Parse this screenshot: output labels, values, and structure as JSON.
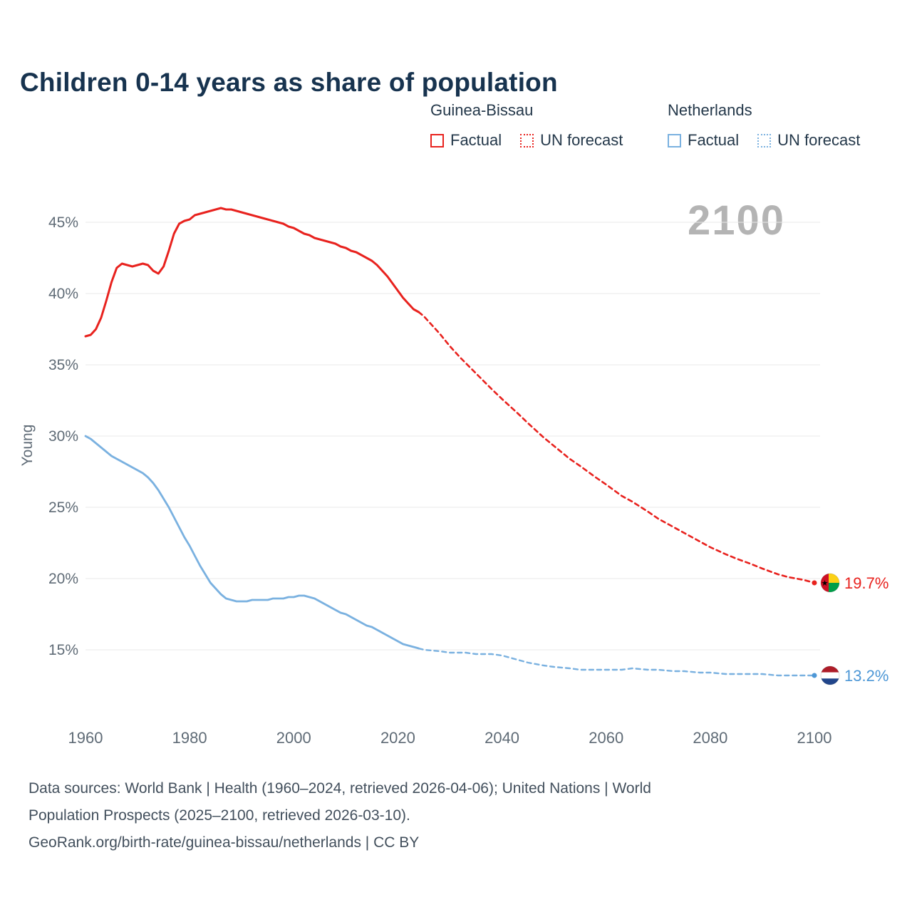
{
  "title": "Children 0-14 years as share of population",
  "watermark": {
    "text": "2100",
    "color": "#b4b4b4"
  },
  "legend": {
    "groups": [
      {
        "name": "Guinea-Bissau",
        "color": "#e8221e",
        "items": [
          {
            "label": "Factual",
            "style": "solid"
          },
          {
            "label": "UN forecast",
            "style": "dotted"
          }
        ]
      },
      {
        "name": "Netherlands",
        "color": "#7ab1e0",
        "items": [
          {
            "label": "Factual",
            "style": "solid"
          },
          {
            "label": "UN forecast",
            "style": "dotted"
          }
        ]
      }
    ]
  },
  "chart_data": {
    "type": "line",
    "title": "Children 0-14 years as share of population",
    "xlabel": "",
    "ylabel": "Young",
    "yticks": [
      15,
      20,
      25,
      30,
      35,
      40,
      45
    ],
    "ytick_suffix": "%",
    "xticks": [
      1960,
      1980,
      2000,
      2020,
      2040,
      2060,
      2080,
      2100
    ],
    "xlim": [
      1960,
      2100
    ],
    "ylim": [
      15,
      45
    ],
    "grid": "horizontal",
    "legend_position": "top-right",
    "series": [
      {
        "name": "Guinea-Bissau Factual",
        "color": "#e8221e",
        "dash": "solid",
        "width": 3,
        "points": [
          [
            1960,
            37.0
          ],
          [
            1961,
            37.1
          ],
          [
            1962,
            37.5
          ],
          [
            1963,
            38.3
          ],
          [
            1964,
            39.5
          ],
          [
            1965,
            40.8
          ],
          [
            1966,
            41.8
          ],
          [
            1967,
            42.1
          ],
          [
            1968,
            42.0
          ],
          [
            1969,
            41.9
          ],
          [
            1970,
            42.0
          ],
          [
            1971,
            42.1
          ],
          [
            1972,
            42.0
          ],
          [
            1973,
            41.6
          ],
          [
            1974,
            41.4
          ],
          [
            1975,
            41.9
          ],
          [
            1976,
            43.0
          ],
          [
            1977,
            44.2
          ],
          [
            1978,
            44.9
          ],
          [
            1979,
            45.1
          ],
          [
            1980,
            45.2
          ],
          [
            1981,
            45.5
          ],
          [
            1982,
            45.6
          ],
          [
            1983,
            45.7
          ],
          [
            1984,
            45.8
          ],
          [
            1985,
            45.9
          ],
          [
            1986,
            46.0
          ],
          [
            1987,
            45.9
          ],
          [
            1988,
            45.9
          ],
          [
            1989,
            45.8
          ],
          [
            1990,
            45.7
          ],
          [
            1991,
            45.6
          ],
          [
            1992,
            45.5
          ],
          [
            1993,
            45.4
          ],
          [
            1994,
            45.3
          ],
          [
            1995,
            45.2
          ],
          [
            1996,
            45.1
          ],
          [
            1997,
            45.0
          ],
          [
            1998,
            44.9
          ],
          [
            1999,
            44.7
          ],
          [
            2000,
            44.6
          ],
          [
            2001,
            44.4
          ],
          [
            2002,
            44.2
          ],
          [
            2003,
            44.1
          ],
          [
            2004,
            43.9
          ],
          [
            2005,
            43.8
          ],
          [
            2006,
            43.7
          ],
          [
            2007,
            43.6
          ],
          [
            2008,
            43.5
          ],
          [
            2009,
            43.3
          ],
          [
            2010,
            43.2
          ],
          [
            2011,
            43.0
          ],
          [
            2012,
            42.9
          ],
          [
            2013,
            42.7
          ],
          [
            2014,
            42.5
          ],
          [
            2015,
            42.3
          ],
          [
            2016,
            42.0
          ],
          [
            2017,
            41.6
          ],
          [
            2018,
            41.2
          ],
          [
            2019,
            40.7
          ],
          [
            2020,
            40.2
          ],
          [
            2021,
            39.7
          ],
          [
            2022,
            39.3
          ],
          [
            2023,
            38.9
          ],
          [
            2024,
            38.7
          ]
        ]
      },
      {
        "name": "Guinea-Bissau UN forecast",
        "color": "#e8221e",
        "dash": "dashed",
        "width": 2.6,
        "points": [
          [
            2024,
            38.7
          ],
          [
            2025,
            38.4
          ],
          [
            2028,
            37.2
          ],
          [
            2030,
            36.3
          ],
          [
            2032,
            35.5
          ],
          [
            2035,
            34.4
          ],
          [
            2038,
            33.3
          ],
          [
            2040,
            32.6
          ],
          [
            2043,
            31.6
          ],
          [
            2045,
            30.9
          ],
          [
            2048,
            29.9
          ],
          [
            2050,
            29.3
          ],
          [
            2053,
            28.4
          ],
          [
            2055,
            27.9
          ],
          [
            2058,
            27.1
          ],
          [
            2060,
            26.6
          ],
          [
            2063,
            25.8
          ],
          [
            2065,
            25.4
          ],
          [
            2068,
            24.7
          ],
          [
            2070,
            24.2
          ],
          [
            2073,
            23.6
          ],
          [
            2075,
            23.2
          ],
          [
            2078,
            22.6
          ],
          [
            2080,
            22.2
          ],
          [
            2083,
            21.7
          ],
          [
            2085,
            21.4
          ],
          [
            2088,
            21.0
          ],
          [
            2090,
            20.7
          ],
          [
            2093,
            20.3
          ],
          [
            2095,
            20.1
          ],
          [
            2098,
            19.9
          ],
          [
            2100,
            19.7
          ]
        ]
      },
      {
        "name": "Netherlands Factual",
        "color": "#7ab1e0",
        "dash": "solid",
        "width": 2.8,
        "points": [
          [
            1960,
            30.0
          ],
          [
            1961,
            29.8
          ],
          [
            1962,
            29.5
          ],
          [
            1963,
            29.2
          ],
          [
            1964,
            28.9
          ],
          [
            1965,
            28.6
          ],
          [
            1966,
            28.4
          ],
          [
            1967,
            28.2
          ],
          [
            1968,
            28.0
          ],
          [
            1969,
            27.8
          ],
          [
            1970,
            27.6
          ],
          [
            1971,
            27.4
          ],
          [
            1972,
            27.1
          ],
          [
            1973,
            26.7
          ],
          [
            1974,
            26.2
          ],
          [
            1975,
            25.6
          ],
          [
            1976,
            25.0
          ],
          [
            1977,
            24.3
          ],
          [
            1978,
            23.6
          ],
          [
            1979,
            22.9
          ],
          [
            1980,
            22.3
          ],
          [
            1981,
            21.6
          ],
          [
            1982,
            20.9
          ],
          [
            1983,
            20.3
          ],
          [
            1984,
            19.7
          ],
          [
            1985,
            19.3
          ],
          [
            1986,
            18.9
          ],
          [
            1987,
            18.6
          ],
          [
            1988,
            18.5
          ],
          [
            1989,
            18.4
          ],
          [
            1990,
            18.4
          ],
          [
            1991,
            18.4
          ],
          [
            1992,
            18.5
          ],
          [
            1993,
            18.5
          ],
          [
            1994,
            18.5
          ],
          [
            1995,
            18.5
          ],
          [
            1996,
            18.6
          ],
          [
            1997,
            18.6
          ],
          [
            1998,
            18.6
          ],
          [
            1999,
            18.7
          ],
          [
            2000,
            18.7
          ],
          [
            2001,
            18.8
          ],
          [
            2002,
            18.8
          ],
          [
            2003,
            18.7
          ],
          [
            2004,
            18.6
          ],
          [
            2005,
            18.4
          ],
          [
            2006,
            18.2
          ],
          [
            2007,
            18.0
          ],
          [
            2008,
            17.8
          ],
          [
            2009,
            17.6
          ],
          [
            2010,
            17.5
          ],
          [
            2011,
            17.3
          ],
          [
            2012,
            17.1
          ],
          [
            2013,
            16.9
          ],
          [
            2014,
            16.7
          ],
          [
            2015,
            16.6
          ],
          [
            2016,
            16.4
          ],
          [
            2017,
            16.2
          ],
          [
            2018,
            16.0
          ],
          [
            2019,
            15.8
          ],
          [
            2020,
            15.6
          ],
          [
            2021,
            15.4
          ],
          [
            2022,
            15.3
          ],
          [
            2023,
            15.2
          ],
          [
            2024,
            15.1
          ]
        ]
      },
      {
        "name": "Netherlands UN forecast",
        "color": "#7ab1e0",
        "dash": "dashed",
        "width": 2.4,
        "points": [
          [
            2024,
            15.1
          ],
          [
            2025,
            15.0
          ],
          [
            2028,
            14.9
          ],
          [
            2030,
            14.8
          ],
          [
            2033,
            14.8
          ],
          [
            2035,
            14.7
          ],
          [
            2038,
            14.7
          ],
          [
            2040,
            14.6
          ],
          [
            2043,
            14.3
          ],
          [
            2045,
            14.1
          ],
          [
            2048,
            13.9
          ],
          [
            2050,
            13.8
          ],
          [
            2053,
            13.7
          ],
          [
            2055,
            13.6
          ],
          [
            2058,
            13.6
          ],
          [
            2060,
            13.6
          ],
          [
            2063,
            13.6
          ],
          [
            2065,
            13.7
          ],
          [
            2068,
            13.6
          ],
          [
            2070,
            13.6
          ],
          [
            2073,
            13.5
          ],
          [
            2075,
            13.5
          ],
          [
            2078,
            13.4
          ],
          [
            2080,
            13.4
          ],
          [
            2083,
            13.3
          ],
          [
            2085,
            13.3
          ],
          [
            2088,
            13.3
          ],
          [
            2090,
            13.3
          ],
          [
            2093,
            13.2
          ],
          [
            2095,
            13.2
          ],
          [
            2098,
            13.2
          ],
          [
            2100,
            13.2
          ]
        ]
      }
    ],
    "end_labels": [
      {
        "text": "19.7%",
        "value": 19.7,
        "color": "#e8221e",
        "flag": "guinea-bissau"
      },
      {
        "text": "13.2%",
        "value": 13.2,
        "color": "#4d97d6",
        "flag": "netherlands"
      }
    ]
  },
  "footer": {
    "line1": "Data sources: World Bank | Health (1960–2024, retrieved 2026-04-06); United Nations | World",
    "line2": "Population Prospects (2025–2100, retrieved 2026-03-10).",
    "line3": "GeoRank.org/birth-rate/guinea-bissau/netherlands | CC BY"
  }
}
